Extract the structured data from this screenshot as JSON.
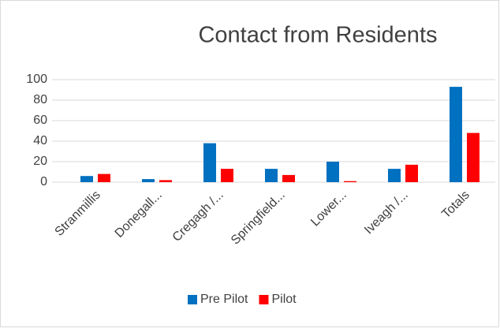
{
  "chart_data": {
    "type": "bar",
    "title": "Contact from Residents",
    "categories": [
      "Stranmillis",
      "Donegall...",
      "Cregagh /...",
      "Springfield...",
      "Lower...",
      "Iveagh /...",
      "Totals"
    ],
    "series": [
      {
        "name": "Pre Pilot",
        "color": "#0070c0",
        "values": [
          6,
          3,
          38,
          13,
          20,
          13,
          93
        ]
      },
      {
        "name": "Pilot",
        "color": "#ff0000",
        "values": [
          8,
          2,
          13,
          7,
          1,
          17,
          48
        ]
      }
    ],
    "ylim": [
      0,
      100
    ],
    "yticks": [
      0,
      20,
      40,
      60,
      80,
      100
    ],
    "grid": true,
    "legend": "bottom"
  }
}
